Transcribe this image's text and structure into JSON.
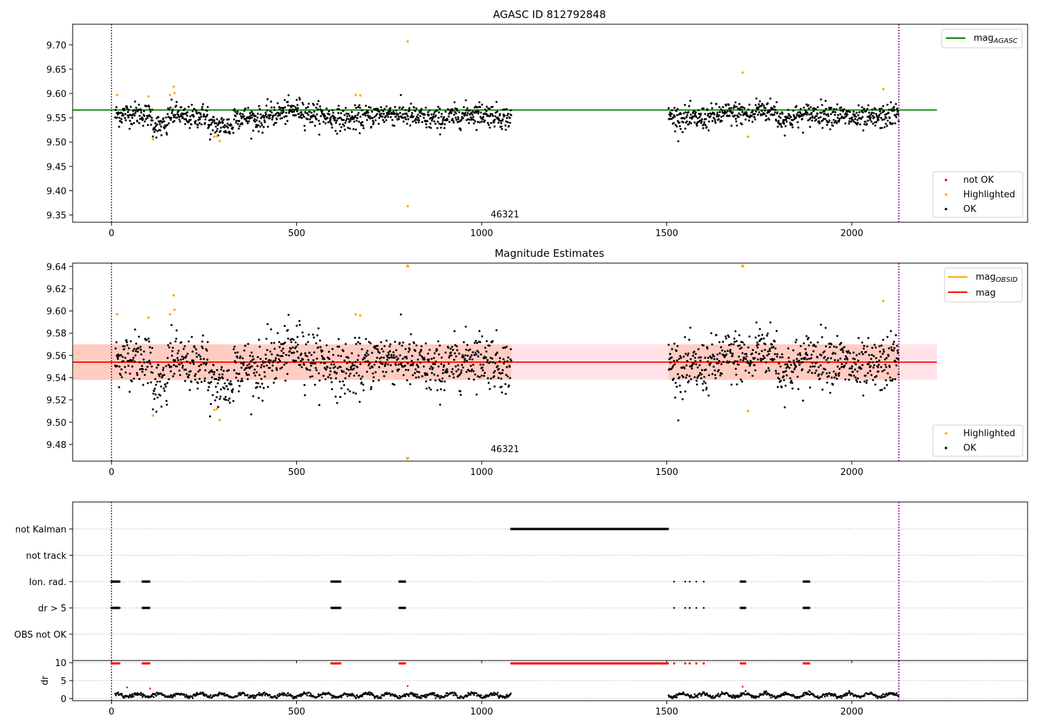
{
  "chart_data": [
    {
      "type": "scatter",
      "title": "AGASC ID 812792848",
      "xlim": [
        -105,
        2475
      ],
      "ylim": [
        9.335,
        9.7425
      ],
      "x_ticks": [
        0,
        500,
        1000,
        1500,
        2000
      ],
      "x_tick_labels": [
        "0",
        "500",
        "1000",
        "1500",
        "2000"
      ],
      "y_ticks": [
        9.35,
        9.4,
        9.45,
        9.5,
        9.55,
        9.6,
        9.65,
        9.7
      ],
      "y_tick_labels": [
        "9.35",
        "9.40",
        "9.45",
        "9.50",
        "9.55",
        "9.60",
        "9.65",
        "9.70"
      ],
      "vlines": [
        0,
        2127
      ],
      "annotation": {
        "text": "46321",
        "x": 1000,
        "y": 9.345
      },
      "hline": {
        "name": "mag",
        "subscript": "AGASC",
        "y": 9.566,
        "x_range": [
          -105,
          2230
        ],
        "color": "#008000"
      },
      "segments": [
        [
          10,
          1080
        ],
        [
          1505,
          2127
        ]
      ],
      "series": [
        {
          "name": "not OK",
          "color": "#ff0000",
          "points": []
        },
        {
          "name": "Highlighted",
          "color": "#ffa500",
          "points": [
            [
              15,
              9.597
            ],
            [
              100,
              9.594
            ],
            [
              112,
              9.506
            ],
            [
              158,
              9.597
            ],
            [
              168,
              9.614
            ],
            [
              170,
              9.601
            ],
            [
              278,
              9.511
            ],
            [
              285,
              9.512
            ],
            [
              292,
              9.502
            ],
            [
              660,
              9.597
            ],
            [
              672,
              9.596
            ],
            [
              800,
              9.707
            ],
            [
              800,
              9.368
            ],
            [
              1705,
              9.643
            ],
            [
              1720,
              9.511
            ],
            [
              2085,
              9.609
            ]
          ]
        },
        {
          "name": "OK",
          "color": "#000000",
          "points": []
        }
      ],
      "legend_top": "top-right",
      "legend_bottom": "bottom-right"
    },
    {
      "type": "scatter",
      "title": "Magnitude Estimates",
      "xlim": [
        -105,
        2475
      ],
      "ylim": [
        9.465,
        9.643
      ],
      "x_ticks": [
        0,
        500,
        1000,
        1500,
        2000
      ],
      "x_tick_labels": [
        "0",
        "500",
        "1000",
        "1500",
        "2000"
      ],
      "y_ticks": [
        9.48,
        9.5,
        9.52,
        9.54,
        9.56,
        9.58,
        9.6,
        9.62,
        9.64
      ],
      "y_tick_labels": [
        "9.48",
        "9.50",
        "9.52",
        "9.54",
        "9.56",
        "9.58",
        "9.60",
        "9.62",
        "9.64"
      ],
      "vlines": [
        0,
        2127
      ],
      "annotation": {
        "text": "46321",
        "x": 1000,
        "y": 9.472
      },
      "band_full": {
        "x_range": [
          -105,
          2230
        ],
        "y_range": [
          9.538,
          9.57
        ],
        "color": "#ffc0cb"
      },
      "band_segments": [
        {
          "x_range": [
            -105,
            1080
          ],
          "y_range": [
            9.538,
            9.57
          ]
        },
        {
          "x_range": [
            1505,
            2127
          ],
          "y_range": [
            9.538,
            9.57
          ]
        }
      ],
      "line_obsid": {
        "name": "mag",
        "subscript": "OBSID",
        "color": "#ffa500",
        "segments": [
          [
            -105,
            1080,
            9.554
          ],
          [
            1505,
            2127,
            9.554
          ]
        ]
      },
      "line_mag": {
        "name": "mag",
        "color": "#ff0000",
        "y": 9.554,
        "x_range": [
          -105,
          2230
        ]
      },
      "triangles": [
        {
          "x": 800,
          "dir": "up"
        },
        {
          "x": 1705,
          "dir": "up"
        },
        {
          "x": 800,
          "dir": "down"
        }
      ],
      "series": [
        {
          "name": "Highlighted",
          "color": "#ffa500",
          "points": [
            [
              15,
              9.597
            ],
            [
              100,
              9.594
            ],
            [
              112,
              9.506
            ],
            [
              158,
              9.597
            ],
            [
              168,
              9.614
            ],
            [
              170,
              9.601
            ],
            [
              278,
              9.511
            ],
            [
              285,
              9.512
            ],
            [
              292,
              9.502
            ],
            [
              660,
              9.597
            ],
            [
              672,
              9.596
            ],
            [
              1720,
              9.51
            ],
            [
              2085,
              9.609
            ]
          ]
        },
        {
          "name": "OK",
          "color": "#000000",
          "points": []
        }
      ],
      "legend_top": "top-right",
      "legend_bottom": "bottom-right"
    },
    {
      "type": "scatter",
      "title": "",
      "xlim": [
        -105,
        2475
      ],
      "x_ticks": [
        0,
        500,
        1000,
        1500,
        2000
      ],
      "x_tick_labels": [
        "0",
        "500",
        "1000",
        "1500",
        "2000"
      ],
      "categories": [
        "not Kalman",
        "not track",
        "Ion. rad.",
        "dr > 5",
        "OBS not OK"
      ],
      "vlines": [
        0,
        2127
      ],
      "flags": [
        {
          "category": "not Kalman",
          "ranges": [
            [
              1080,
              1505
            ]
          ],
          "singles": []
        },
        {
          "category": "not track",
          "ranges": [],
          "singles": []
        },
        {
          "category": "Ion. rad.",
          "ranges": [
            [
              0,
              22
            ],
            [
              84,
              102
            ],
            [
              594,
              618
            ],
            [
              778,
              795
            ],
            [
              1700,
              1714
            ],
            [
              1870,
              1887
            ]
          ],
          "singles": [
            1520,
            1550,
            1562,
            1580,
            1600
          ]
        },
        {
          "category": "dr > 5",
          "ranges": [
            [
              0,
              22
            ],
            [
              84,
              102
            ],
            [
              594,
              618
            ],
            [
              778,
              795
            ],
            [
              1700,
              1714
            ],
            [
              1870,
              1887
            ]
          ],
          "singles": [
            1520,
            1550,
            1562,
            1580,
            1600
          ]
        },
        {
          "category": "OBS not OK",
          "ranges": [],
          "singles": []
        }
      ]
    },
    {
      "type": "scatter",
      "title": "",
      "ylabel": "dr",
      "xlim": [
        -105,
        2475
      ],
      "ylim": [
        -0.6,
        10.6
      ],
      "x_ticks": [
        0,
        500,
        1000,
        1500,
        2000
      ],
      "x_tick_labels": [
        "0",
        "500",
        "1000",
        "1500",
        "2000"
      ],
      "y_ticks": [
        0,
        5,
        10
      ],
      "y_tick_labels": [
        "0",
        "5",
        "10"
      ],
      "vlines": [
        0,
        2127
      ],
      "clipped_ranges": [
        [
          0,
          22
        ],
        [
          84,
          102
        ],
        [
          594,
          618
        ],
        [
          778,
          795
        ],
        [
          1080,
          1505
        ],
        [
          1700,
          1714
        ],
        [
          1870,
          1887
        ]
      ],
      "clipped_singles": [
        1520,
        1550,
        1562,
        1580,
        1600
      ],
      "red_points": [
        [
          42,
          3.1
        ],
        [
          104,
          2.8
        ],
        [
          800,
          3.5
        ],
        [
          1705,
          3.3
        ]
      ]
    }
  ]
}
